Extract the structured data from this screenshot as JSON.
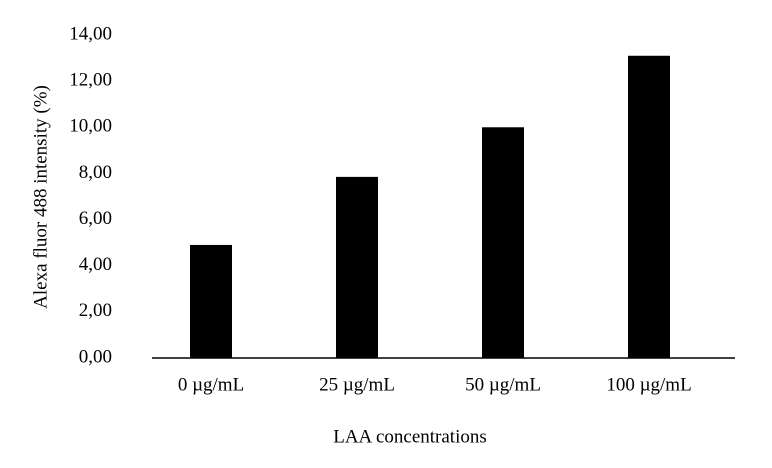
{
  "chart_data": {
    "type": "bar",
    "categories": [
      "0 µg/mL",
      "25 µg/mL",
      "50 µg/mL",
      "100 µg/mL"
    ],
    "values": [
      4.9,
      7.85,
      10.0,
      13.1
    ],
    "color": "#000000",
    "xlabel": "LAA concentrations",
    "ylabel": "Alexa fluor 488 intensity (%)",
    "ylim": [
      0,
      14
    ],
    "yticks": [
      {
        "value": 0,
        "label": "0,00"
      },
      {
        "value": 2,
        "label": "2,00"
      },
      {
        "value": 4,
        "label": "4,00"
      },
      {
        "value": 6,
        "label": "6,00"
      },
      {
        "value": 8,
        "label": "8,00"
      },
      {
        "value": 10,
        "label": "10,00"
      },
      {
        "value": 12,
        "label": "12,00"
      },
      {
        "value": 14,
        "label": "14,00"
      }
    ],
    "grid": false
  }
}
